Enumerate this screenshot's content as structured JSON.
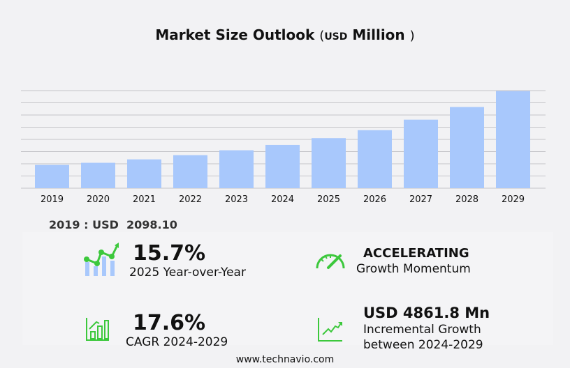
{
  "header": {
    "title": "Market Size Outlook",
    "unit_open": "(",
    "unit": "USD",
    "unit_label": "Million",
    "unit_close": ")"
  },
  "chart_data": {
    "type": "bar",
    "title": "Market Size Outlook (USD Million)",
    "categories": [
      "2019",
      "2020",
      "2021",
      "2022",
      "2023",
      "2024",
      "2025",
      "2026",
      "2027",
      "2028",
      "2029"
    ],
    "values": [
      2098.1,
      2290,
      2600,
      2980,
      3420,
      3900,
      4513,
      5230,
      6180,
      7320,
      8762
    ],
    "ylim": [
      0,
      8800
    ],
    "grid": true,
    "bar_color": "#a8c8fc"
  },
  "first_year": {
    "label": "2019 : USD",
    "value": "2098.10"
  },
  "stats": {
    "yoy": {
      "value": "15.7%",
      "label": "2025 Year-over-Year"
    },
    "momentum": {
      "value": "ACCELERATING",
      "label": "Growth Momentum"
    },
    "cagr": {
      "value": "17.6%",
      "label": "CAGR 2024-2029"
    },
    "incremental": {
      "value": "USD 4861.8 Mn",
      "label1": "Incremental Growth",
      "label2": "between 2024-2029"
    }
  },
  "colors": {
    "accent_green": "#3cc83c",
    "bar": "#a8c8fc",
    "icon_bar": "#a8c8fc"
  },
  "footer": {
    "url": "www.technavio.com"
  }
}
